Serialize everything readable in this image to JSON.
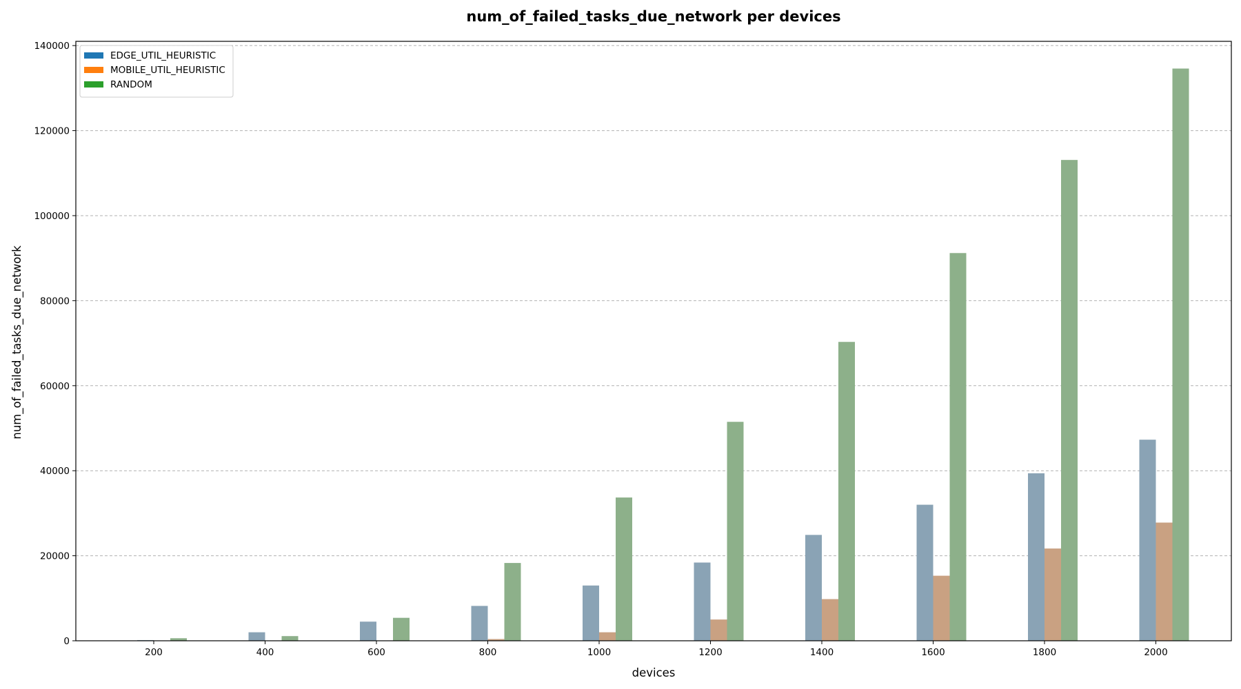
{
  "chart_data": {
    "type": "bar",
    "title": "num_of_failed_tasks_due_network per devices",
    "xlabel": "devices",
    "ylabel": "num_of_failed_tasks_due_network",
    "categories": [
      "200",
      "400",
      "600",
      "800",
      "1000",
      "1200",
      "1400",
      "1600",
      "1800",
      "2000"
    ],
    "ylim": [
      0,
      141000
    ],
    "yticks": [
      0,
      20000,
      40000,
      60000,
      80000,
      100000,
      120000,
      140000
    ],
    "grid": "y-dashed",
    "legend_position": "top-left",
    "series": [
      {
        "name": "EDGE_UTIL_HEURISTIC",
        "legend_color": "#1f77b4",
        "bar_color": "#8aa3b5",
        "values": [
          150,
          2000,
          4500,
          8200,
          13000,
          18400,
          24900,
          32000,
          39400,
          47300
        ]
      },
      {
        "name": "MOBILE_UTIL_HEURISTIC",
        "legend_color": "#ff7f0e",
        "bar_color": "#c9a182",
        "values": [
          0,
          0,
          0,
          400,
          2000,
          5000,
          9800,
          15300,
          21700,
          27800
        ]
      },
      {
        "name": "RANDOM",
        "legend_color": "#2ca02c",
        "bar_color": "#8db08a",
        "values": [
          600,
          1100,
          5400,
          18300,
          33700,
          51500,
          70300,
          91200,
          113100,
          134600
        ]
      }
    ]
  }
}
